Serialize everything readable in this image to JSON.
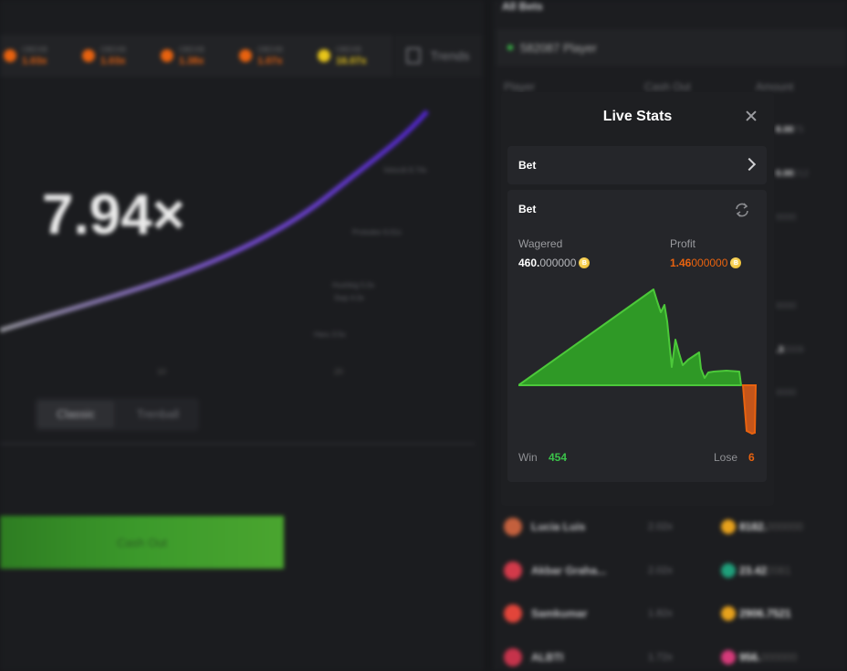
{
  "colors": {
    "green": "#3bc24a",
    "orange": "#e8620f",
    "purple": "#5b2fd0",
    "gold": "#e8c51a"
  },
  "background": {
    "history": [
      {
        "label": "OBDXB",
        "value": "1.03x",
        "icon": "orange-coin-icon"
      },
      {
        "label": "OBDXB",
        "value": "1.03x",
        "icon": "orange-coin-icon"
      },
      {
        "label": "OBDXB",
        "value": "1.38x",
        "icon": "orange-coin-icon"
      },
      {
        "label": "OBDXB",
        "value": "1.07x",
        "icon": "orange-coin-icon"
      },
      {
        "label": "OBDXB",
        "value": "16.07x",
        "icon": "gold-coin-icon"
      }
    ],
    "trends_label": "Trends",
    "multiplier": "7.94×",
    "point_labels": [
      "Velocitt 8.74x",
      "Protodev 6.01x",
      "Hushkig 5.0x",
      "Swp 4.0x",
      "Haru 3.5x"
    ],
    "mode_tabs": [
      "Classic",
      "Trenball"
    ],
    "cash_out_label": "Cash Out",
    "all_bets_title": "All Bets",
    "players_count": "582087 Player",
    "columns": [
      "Player",
      "Cash Out",
      "Amount"
    ],
    "side_amounts": [
      {
        "main": "8.00",
        "dim": "75"
      },
      {
        "main": "0.00",
        "dim": "212"
      },
      {
        "main": "",
        "dim": "0000"
      },
      {
        "main": "",
        "dim": "0000"
      },
      {
        "main": ".3",
        "dim": "2009"
      },
      {
        "main": "",
        "dim": "0000"
      }
    ],
    "bets": [
      {
        "name": "Lucia Luis",
        "cashout": "2.02x",
        "amount": "8182.",
        "amount_dim": "000000",
        "avatar_color": "#c4603d",
        "coin_color": "#e8a21c"
      },
      {
        "name": "Akbar Graha...",
        "cashout": "2.02x",
        "amount": "23.42",
        "amount_dim": "2081",
        "avatar_color": "#d23a4a",
        "coin_color": "#1fa07b"
      },
      {
        "name": "Samkumar",
        "cashout": "1.82x",
        "amount": "2906.7521",
        "amount_dim": "",
        "avatar_color": "#e2453a",
        "coin_color": "#e8a21c"
      },
      {
        "name": "ALBTI",
        "cashout": "1.72x",
        "amount": "956.",
        "amount_dim": "000000",
        "avatar_color": "#c6334b",
        "coin_color": "#d63a7a"
      }
    ]
  },
  "modal": {
    "title": "Live Stats",
    "selector_label": "Bet",
    "card_title": "Bet",
    "wagered_label": "Wagered",
    "wagered_main": "460.",
    "wagered_dim": "000000",
    "profit_label": "Profit",
    "profit_main": "1.46",
    "profit_dim": "000000",
    "win_label": "Win",
    "win_value": "454",
    "lose_label": "Lose",
    "lose_value": "6"
  }
}
